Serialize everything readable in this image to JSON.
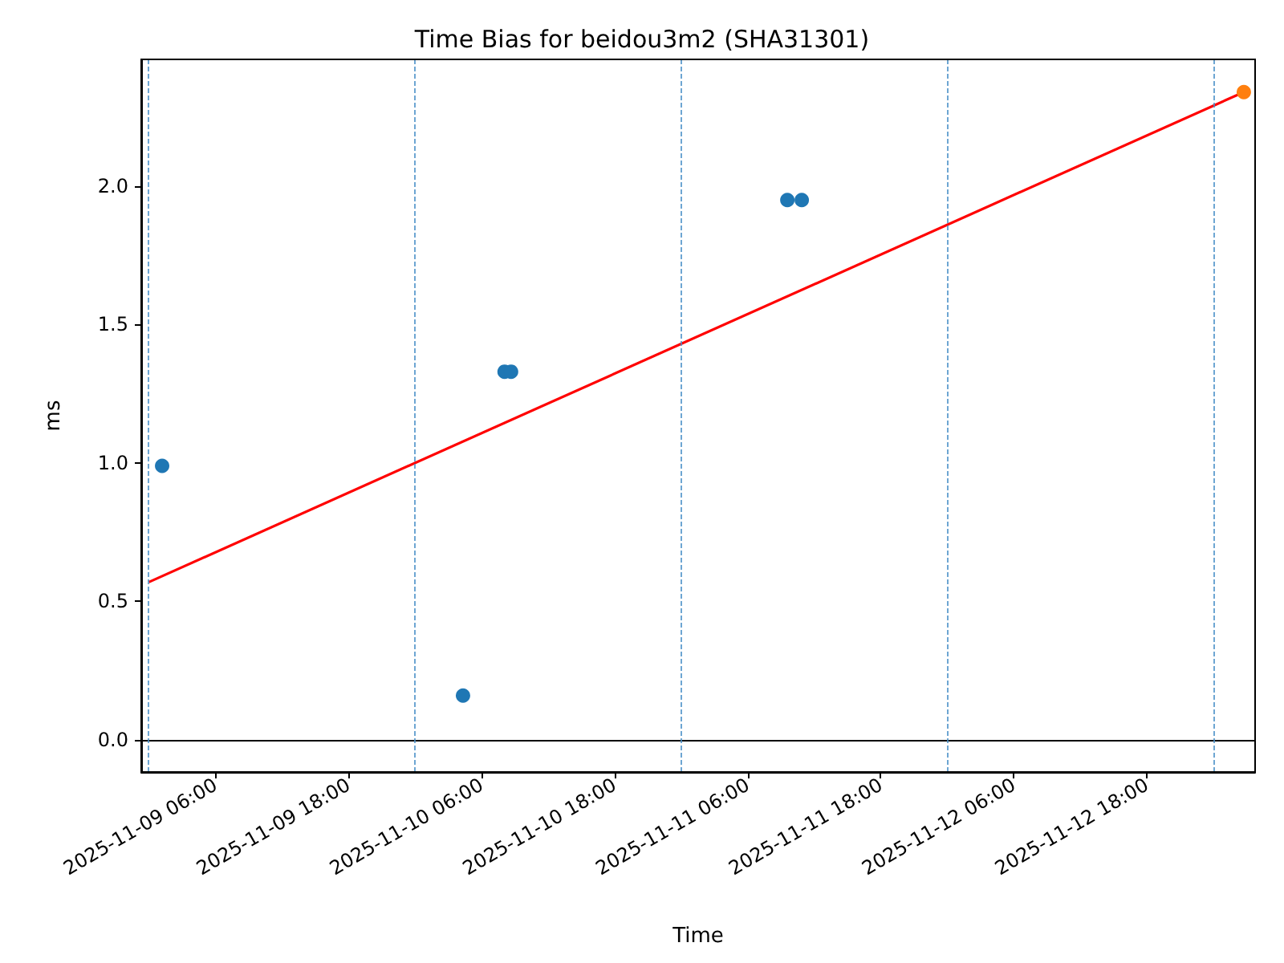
{
  "chart_data": {
    "type": "scatter",
    "title": "Time Bias for beidou3m2 (SHA31301)",
    "xlabel": "Time",
    "ylabel": "ms",
    "marker": "circle",
    "series": [
      {
        "color": "#1f77b4",
        "x": [
          "2025-11-09T01:12",
          "2025-11-10T04:20",
          "2025-11-10T08:05",
          "2025-11-10T08:40",
          "2025-11-11T09:35",
          "2025-11-11T10:53"
        ],
        "values": [
          0.99,
          0.16,
          1.33,
          1.33,
          1.95,
          1.95
        ]
      },
      {
        "color": "#ff7f0e",
        "x": [
          "2025-11-13T02:45"
        ],
        "values": [
          2.34
        ]
      },
      {
        "type": "line",
        "marker": "none",
        "color": "#ff0000",
        "x": [
          "2025-11-09T00:00",
          "2025-11-13T02:45"
        ],
        "values": [
          0.57,
          2.34
        ]
      }
    ],
    "xlim": [
      "2025-11-08T23:19",
      "2025-11-13T03:46"
    ],
    "xticks": [
      {
        "value": "2025-11-09T06:00",
        "label": "2025-11-09 06:00"
      },
      {
        "value": "2025-11-09T18:00",
        "label": "2025-11-09 18:00"
      },
      {
        "value": "2025-11-10T06:00",
        "label": "2025-11-10 06:00"
      },
      {
        "value": "2025-11-10T18:00",
        "label": "2025-11-10 18:00"
      },
      {
        "value": "2025-11-11T06:00",
        "label": "2025-11-11 06:00"
      },
      {
        "value": "2025-11-11T18:00",
        "label": "2025-11-11 18:00"
      },
      {
        "value": "2025-11-12T06:00",
        "label": "2025-11-12 06:00"
      },
      {
        "value": "2025-11-12T18:00",
        "label": "2025-11-12 18:00"
      }
    ],
    "ylim": [
      -0.116,
      2.458
    ],
    "yticks": [
      {
        "value": 0,
        "label": "0.0"
      },
      {
        "value": 0.5,
        "label": "0.5"
      },
      {
        "value": 1,
        "label": "1.0"
      },
      {
        "value": 1.5,
        "label": "1.5"
      },
      {
        "value": 2,
        "label": "2.0"
      }
    ],
    "ref_lines": [
      {
        "axis": "y",
        "value": 0,
        "color": "#000000",
        "line_style": "solid"
      },
      {
        "axis": "x",
        "value": "2025-11-09T00:00",
        "color": "#4a90c8",
        "line_style": "dashed"
      },
      {
        "axis": "x",
        "value": "2025-11-10T00:00",
        "color": "#4a90c8",
        "line_style": "dashed"
      },
      {
        "axis": "x",
        "value": "2025-11-11T00:00",
        "color": "#4a90c8",
        "line_style": "dashed"
      },
      {
        "axis": "x",
        "value": "2025-11-12T00:00",
        "color": "#4a90c8",
        "line_style": "dashed"
      },
      {
        "axis": "x",
        "value": "2025-11-13T00:00",
        "color": "#4a90c8",
        "line_style": "dashed"
      }
    ],
    "grid": false
  }
}
